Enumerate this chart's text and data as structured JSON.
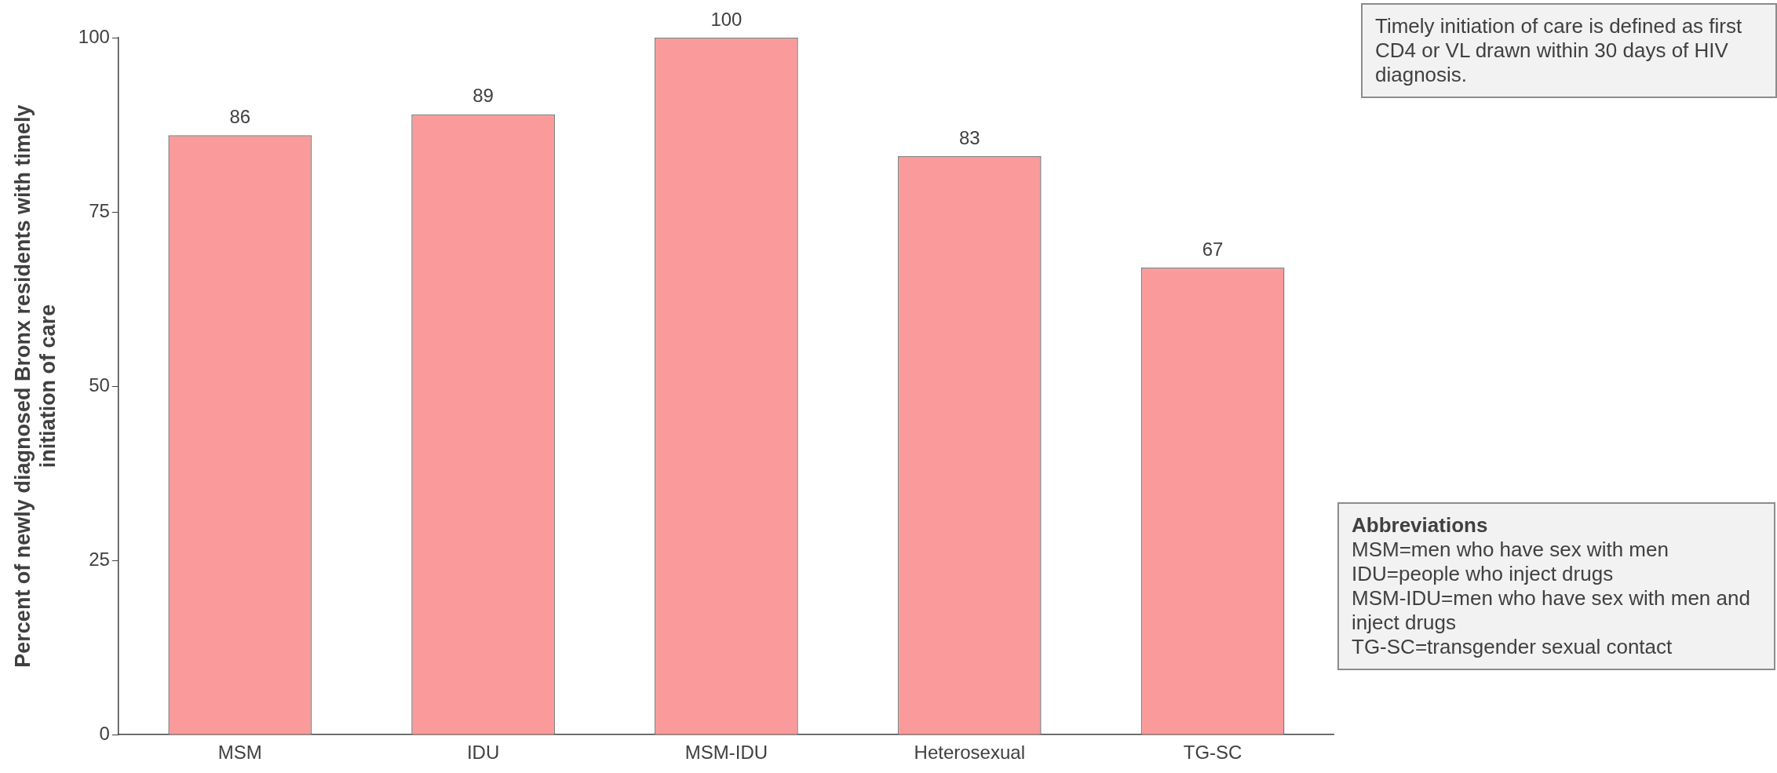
{
  "chart_data": {
    "type": "bar",
    "ylabel": "Percent of newly diagnosed Bronx residents with timely initiation of care",
    "categories": [
      "MSM",
      "IDU",
      "MSM-IDU",
      "Heterosexual",
      "TG-SC"
    ],
    "values": [
      86,
      89,
      100,
      83,
      67
    ],
    "color": "#fa9a9a",
    "ylim": [
      0,
      100
    ],
    "yticks": [
      0,
      25,
      50,
      75,
      100
    ],
    "grid": false,
    "legend": false,
    "data_labels": true,
    "annotations": [
      "Timely initiation of care is defined as first CD4 or VL drawn within 30 days of HIV diagnosis.",
      "Abbreviations",
      "MSM=men who have sex with men",
      "IDU=people who inject drugs",
      "MSM-IDU=men who have sex with men and inject drugs",
      "TG-SC=transgender sexual contact"
    ]
  }
}
